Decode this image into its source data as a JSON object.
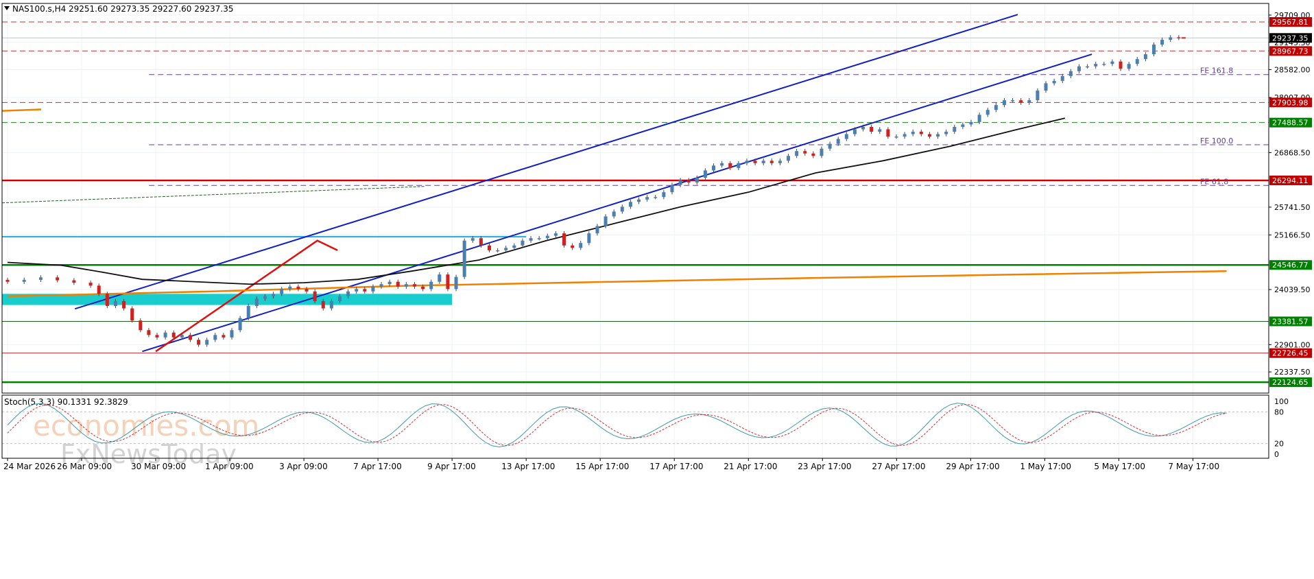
{
  "header": {
    "symbol_label": "NAS100.s,H4",
    "ohlc_label": "29251.60 29273.35 29227.60 29237.35"
  },
  "chart_data": {
    "type": "candlestick",
    "symbol": "NAS100.s",
    "timeframe": "H4",
    "ohlc": {
      "open": 29251.6,
      "high": 29273.35,
      "low": 29227.6,
      "close": 29237.35
    },
    "price_axis": {
      "range": [
        21900,
        29950
      ],
      "tick_labels": [
        "29709.00",
        "29145.30",
        "28582.00",
        "28007.00",
        "26868.50",
        "25741.50",
        "25166.50",
        "24039.50",
        "22901.00",
        "22337.50"
      ],
      "tick_values": [
        29709.0,
        29145.3,
        28582.0,
        28007.0,
        26868.5,
        25741.5,
        25166.5,
        24039.5,
        22901.0,
        22337.5
      ]
    },
    "time_axis": {
      "labels": [
        "24 Mar 2026",
        "26 Mar 09:00",
        "30 Mar 09:00",
        "1 Apr 09:00",
        "3 Apr 09:00",
        "7 Apr 17:00",
        "9 Apr 17:00",
        "13 Apr 17:00",
        "15 Apr 17:00",
        "17 Apr 17:00",
        "21 Apr 17:00",
        "23 Apr 17:00",
        "27 Apr 17:00",
        "29 Apr 17:00",
        "1 May 17:00",
        "5 May 17:00",
        "7 May 17:00"
      ],
      "candle_index": [
        0,
        11,
        22,
        33,
        44,
        55,
        66,
        77,
        88,
        99,
        110,
        121,
        132,
        143,
        154,
        165,
        176
      ],
      "total_candles": 185
    },
    "candles": [
      [
        0,
        24200
      ],
      [
        2,
        24240
      ],
      [
        4,
        24290
      ],
      [
        6,
        24230
      ],
      [
        8,
        24180
      ],
      [
        10,
        24120
      ],
      [
        11,
        23950
      ],
      [
        12,
        23700
      ],
      [
        13,
        23800
      ],
      [
        14,
        23650
      ],
      [
        15,
        23400
      ],
      [
        16,
        23200
      ],
      [
        17,
        23100
      ],
      [
        18,
        23050
      ],
      [
        19,
        23150
      ],
      [
        20,
        23050
      ],
      [
        21,
        23100
      ],
      [
        22,
        23000
      ],
      [
        23,
        22900
      ],
      [
        24,
        23000
      ],
      [
        25,
        23100
      ],
      [
        26,
        23050
      ],
      [
        27,
        23200
      ],
      [
        28,
        23450
      ],
      [
        29,
        23700
      ],
      [
        30,
        23850
      ],
      [
        31,
        23900
      ],
      [
        32,
        23950
      ],
      [
        33,
        24050
      ],
      [
        34,
        24100
      ],
      [
        35,
        24050
      ],
      [
        36,
        24000
      ],
      [
        37,
        23800
      ],
      [
        38,
        23650
      ],
      [
        39,
        23800
      ],
      [
        40,
        23900
      ],
      [
        41,
        24000
      ],
      [
        42,
        24050
      ],
      [
        43,
        24000
      ],
      [
        44,
        24100
      ],
      [
        45,
        24150
      ],
      [
        46,
        24200
      ],
      [
        47,
        24100
      ],
      [
        48,
        24150
      ],
      [
        49,
        24100
      ],
      [
        50,
        24050
      ],
      [
        51,
        24200
      ],
      [
        52,
        24350
      ],
      [
        53,
        24050
      ],
      [
        54,
        24300
      ],
      [
        55,
        25050
      ],
      [
        56,
        25100
      ],
      [
        57,
        24950
      ],
      [
        58,
        24850
      ],
      [
        59,
        24850
      ],
      [
        60,
        24900
      ],
      [
        61,
        24950
      ],
      [
        62,
        25050
      ],
      [
        63,
        25100
      ],
      [
        64,
        25100
      ],
      [
        65,
        25150
      ],
      [
        66,
        25200
      ],
      [
        67,
        24950
      ],
      [
        68,
        24900
      ],
      [
        69,
        25000
      ],
      [
        70,
        25200
      ],
      [
        71,
        25350
      ],
      [
        72,
        25550
      ],
      [
        73,
        25650
      ],
      [
        74,
        25750
      ],
      [
        75,
        25850
      ],
      [
        76,
        25900
      ],
      [
        77,
        25950
      ],
      [
        78,
        25950
      ],
      [
        79,
        26050
      ],
      [
        80,
        26200
      ],
      [
        81,
        26300
      ],
      [
        82,
        26250
      ],
      [
        83,
        26350
      ],
      [
        84,
        26500
      ],
      [
        85,
        26600
      ],
      [
        86,
        26650
      ],
      [
        87,
        26550
      ],
      [
        88,
        26650
      ],
      [
        89,
        26700
      ],
      [
        90,
        26650
      ],
      [
        91,
        26700
      ],
      [
        92,
        26650
      ],
      [
        93,
        26700
      ],
      [
        94,
        26800
      ],
      [
        95,
        26900
      ],
      [
        96,
        26850
      ],
      [
        97,
        26800
      ],
      [
        98,
        26950
      ],
      [
        99,
        27050
      ],
      [
        100,
        27150
      ],
      [
        101,
        27250
      ],
      [
        102,
        27350
      ],
      [
        103,
        27400
      ],
      [
        104,
        27300
      ],
      [
        105,
        27350
      ],
      [
        106,
        27200
      ],
      [
        107,
        27200
      ],
      [
        108,
        27250
      ],
      [
        109,
        27300
      ],
      [
        110,
        27250
      ],
      [
        111,
        27200
      ],
      [
        112,
        27250
      ],
      [
        113,
        27300
      ],
      [
        114,
        27400
      ],
      [
        115,
        27450
      ],
      [
        116,
        27500
      ],
      [
        117,
        27650
      ],
      [
        118,
        27750
      ],
      [
        119,
        27850
      ],
      [
        120,
        27950
      ],
      [
        121,
        27950
      ],
      [
        122,
        27900
      ],
      [
        123,
        27950
      ],
      [
        124,
        28150
      ],
      [
        125,
        28300
      ],
      [
        126,
        28350
      ],
      [
        127,
        28450
      ],
      [
        128,
        28550
      ],
      [
        129,
        28650
      ],
      [
        130,
        28650
      ],
      [
        131,
        28700
      ],
      [
        132,
        28700
      ],
      [
        133,
        28750
      ],
      [
        134,
        28600
      ],
      [
        135,
        28700
      ],
      [
        136,
        28800
      ],
      [
        137,
        28900
      ],
      [
        138,
        29100
      ],
      [
        139,
        29200
      ],
      [
        140,
        29250
      ],
      [
        141,
        29237
      ]
    ],
    "indicators": {
      "stochastic": {
        "label": "Stoch(5,3,3) 90.1331 92.3829",
        "main": 90.1331,
        "signal": 92.3829,
        "levels": [
          20,
          80
        ],
        "axis_labels": [
          "100",
          "80",
          "20",
          "0"
        ]
      }
    },
    "levels": [
      {
        "label": "29567.81",
        "price": 29567.81,
        "color": "#c00000",
        "line_color": "#c03030",
        "line_style": "dashed"
      },
      {
        "label": "29237.35",
        "price": 29237.35,
        "color": "#000000",
        "line_color": "#b0c8d8",
        "line_style": "solid"
      },
      {
        "label": "28967.73",
        "price": 28967.73,
        "color": "#c00000",
        "line_color": "#c03030",
        "line_style": "dashed"
      },
      {
        "label": "27903.98",
        "price": 27903.98,
        "color": "#c00000",
        "line_color": "#c03030",
        "line_style": "dashed"
      },
      {
        "label": "27488.57",
        "price": 27488.57,
        "color": "#008000",
        "line_color": "#208020",
        "line_style": "dashed"
      },
      {
        "label": "26294.11",
        "price": 26294.11,
        "color": "#c00000",
        "line_color": "#d00000",
        "line_style": "solid-thick"
      },
      {
        "label": "24546.77",
        "price": 24546.77,
        "color": "#008000",
        "line_color": "#008000",
        "line_style": "solid-thick"
      },
      {
        "label": "23381.57",
        "price": 23381.57,
        "color": "#008000",
        "line_color": "#206020",
        "line_style": "solid"
      },
      {
        "label": "22726.45",
        "price": 22726.45,
        "color": "#c00000",
        "line_color": "#c03030",
        "line_style": "solid-thin"
      },
      {
        "label": "22124.65",
        "price": 22124.65,
        "color": "#008000",
        "line_color": "#008000",
        "line_style": "solid-thick"
      }
    ],
    "fibonacci_labels": [
      {
        "label": "FE 161.8",
        "price": 28480
      },
      {
        "label": "FE 100.0",
        "price": 27030
      },
      {
        "label": "FE 61.8",
        "price": 26190
      }
    ],
    "colors": {
      "up": "#4a7fb0",
      "down": "#d02020",
      "channel": "#1020c0",
      "ma_black": "#101010",
      "ma_orange": "#f08000",
      "zone": "#00c8c8"
    }
  },
  "watermark": {
    "line1": "economies.com",
    "line2": "FxNewsToday"
  }
}
